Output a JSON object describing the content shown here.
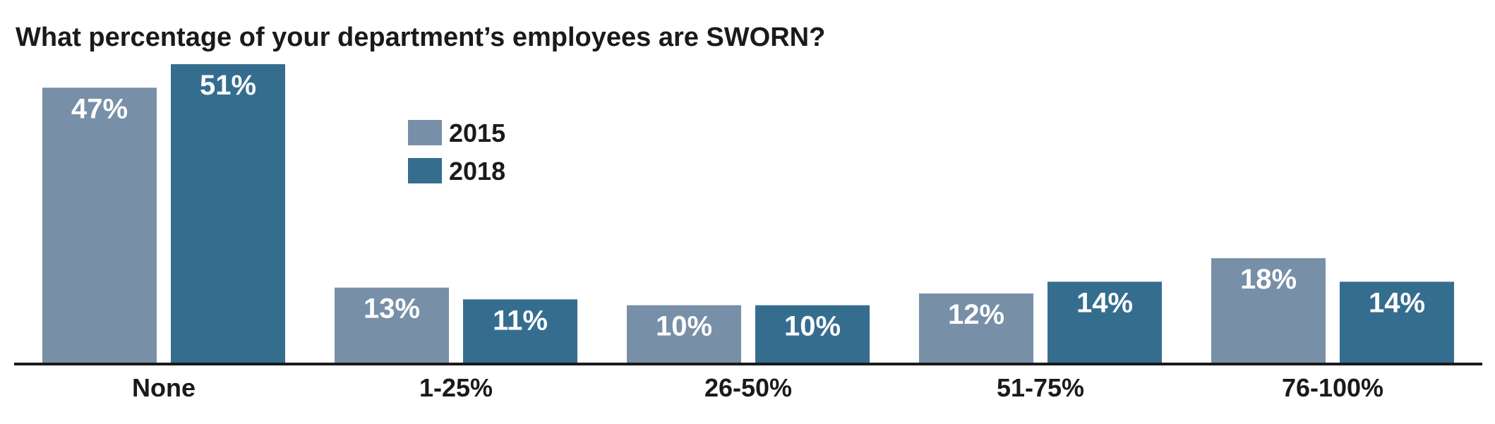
{
  "chart_data": {
    "type": "bar",
    "title": "What percentage of your department’s employees are SWORN?",
    "xlabel": "",
    "ylabel": "",
    "categories": [
      "None",
      "1-25%",
      "26-50%",
      "51-75%",
      "76-100%"
    ],
    "series": [
      {
        "name": "2015",
        "values": [
          47,
          13,
          10,
          12,
          18
        ],
        "labels": [
          "47%",
          "13%",
          "10%",
          "12%",
          "18%"
        ],
        "color": "#788fa8"
      },
      {
        "name": "2018",
        "values": [
          51,
          11,
          10,
          14,
          14
        ],
        "labels": [
          "51%",
          "11%",
          "10%",
          "14%",
          "14%"
        ],
        "color": "#356d8f"
      }
    ],
    "ylim": [
      0,
      51
    ],
    "grid": false,
    "legend": "top-center",
    "axis_color": "#1a1a1a"
  }
}
